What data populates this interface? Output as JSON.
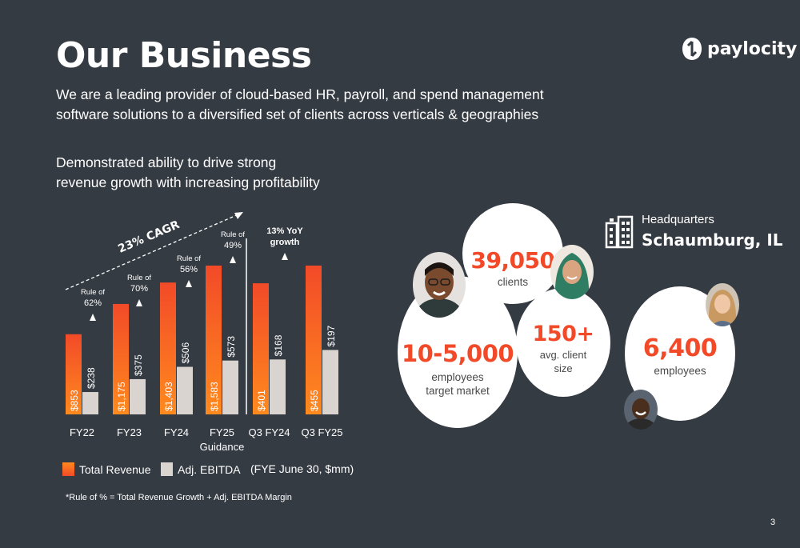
{
  "header": {
    "title": "Our Business",
    "logo_text": "paylocity",
    "intro_line1": "We are a leading provider of cloud-based HR, payroll, and spend management",
    "intro_line2": "software solutions to a diversified set of clients across verticals & geographies",
    "growth_line1": "Demonstrated ability to drive strong",
    "growth_line2": "revenue growth with increasing profitability"
  },
  "chart_data": {
    "type": "bar",
    "categories": [
      "FY22",
      "FY23",
      "FY24",
      "FY25 Guidance",
      "Q3 FY24",
      "Q3 FY25"
    ],
    "category_lines": [
      [
        "FY22"
      ],
      [
        "FY23"
      ],
      [
        "FY24"
      ],
      [
        "FY25",
        "Guidance"
      ],
      [
        "Q3 FY24"
      ],
      [
        "Q3 FY25"
      ]
    ],
    "series": [
      {
        "name": "Total Revenue",
        "values": [
          853,
          1175,
          1403,
          1583,
          401,
          455
        ],
        "labels": [
          "$853",
          "$1,175",
          "$1,403",
          "$1,583",
          "$401",
          "$455"
        ]
      },
      {
        "name": "Adj. EBITDA",
        "values": [
          238,
          375,
          506,
          573,
          168,
          197
        ],
        "labels": [
          "$238",
          "$375",
          "$506",
          "$573",
          "$168",
          "$197"
        ]
      }
    ],
    "rule_of": [
      {
        "line1": "Rule of",
        "line2": "62%"
      },
      {
        "line1": "Rule of",
        "line2": "70%"
      },
      {
        "line1": "Rule of",
        "line2": "56%"
      },
      {
        "line1": "Rule of",
        "line2": "49%"
      },
      {
        "line1": "13% YoY",
        "line2": "growth"
      }
    ],
    "cagr_label": "23% CAGR",
    "units_note": "(FYE June 30, $mm)",
    "colors": {
      "revenue": "#f24a28",
      "revenue_light": "#ff8a1e",
      "ebitda": "#d9d4cf"
    }
  },
  "legend": {
    "revenue": "Total Revenue",
    "ebitda": "Adj. EBITDA",
    "note": "(FYE June 30, $mm)"
  },
  "footnote": "*Rule of % = Total Revenue Growth + Adj. EBITDA Margin",
  "stats": {
    "clients_value": "39,050",
    "clients_label": "clients",
    "avg_value": "150+",
    "avg_label1": "avg. client",
    "avg_label2": "size",
    "target_value": "10-5,000",
    "target_label1": "employees",
    "target_label2": "target market",
    "employees_value": "6,400",
    "employees_label": "employees"
  },
  "hq": {
    "label": "Headquarters",
    "city": "Schaumburg, IL"
  },
  "page_number": "3",
  "icons": [
    "paylocity-logo-icon",
    "building-icon"
  ]
}
